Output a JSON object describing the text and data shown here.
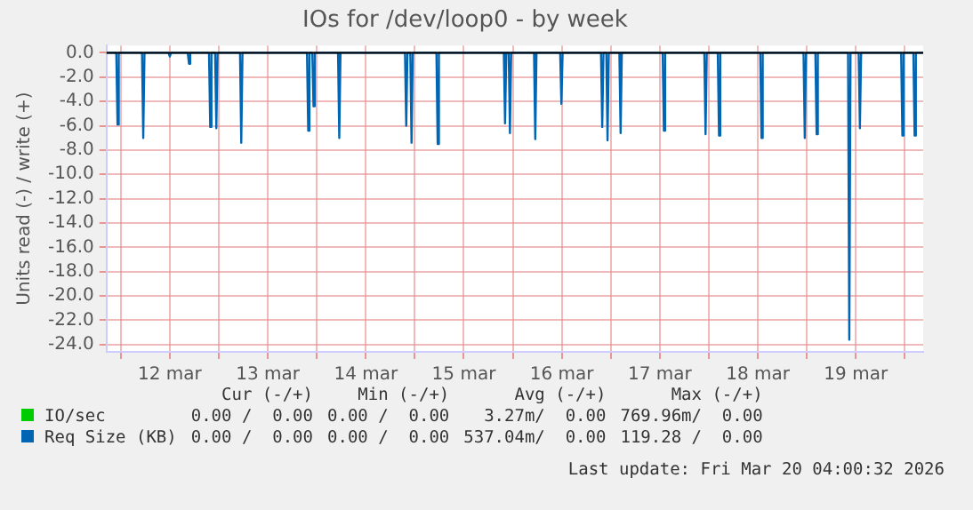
{
  "chart_data": {
    "type": "line",
    "title": "IOs for /dev/loop0 - by week",
    "ylabel": "Units read (-) / write (+)",
    "xlim": [
      "2026-03-11T20:30",
      "2026-03-20T04:30"
    ],
    "xticks": [
      {
        "value": "2026-03-12",
        "label": null
      },
      {
        "value": "2026-03-12T12:00",
        "label": "12 mar"
      },
      {
        "value": "2026-03-13",
        "label": null
      },
      {
        "value": "2026-03-13T12:00",
        "label": "13 mar"
      },
      {
        "value": "2026-03-14",
        "label": null
      },
      {
        "value": "2026-03-14T12:00",
        "label": "14 mar"
      },
      {
        "value": "2026-03-15",
        "label": null
      },
      {
        "value": "2026-03-15T12:00",
        "label": "15 mar"
      },
      {
        "value": "2026-03-16",
        "label": null
      },
      {
        "value": "2026-03-16T12:00",
        "label": "16 mar"
      },
      {
        "value": "2026-03-17",
        "label": null
      },
      {
        "value": "2026-03-17T12:00",
        "label": "17 mar"
      },
      {
        "value": "2026-03-18",
        "label": null
      },
      {
        "value": "2026-03-18T12:00",
        "label": "18 mar"
      },
      {
        "value": "2026-03-19",
        "label": null
      },
      {
        "value": "2026-03-19T12:00",
        "label": "19 mar"
      },
      {
        "value": "2026-03-20",
        "label": null
      }
    ],
    "ylim": [
      -24.6,
      0.6
    ],
    "yticks": [
      {
        "value": 0,
        "label": "0.0"
      },
      {
        "value": -2,
        "label": "-2.0"
      },
      {
        "value": -4,
        "label": "-4.0"
      },
      {
        "value": -6,
        "label": "-6.0"
      },
      {
        "value": -8,
        "label": "-8.0"
      },
      {
        "value": -10,
        "label": "-10.0"
      },
      {
        "value": -12,
        "label": "-12.0"
      },
      {
        "value": -14,
        "label": "-14.0"
      },
      {
        "value": -16,
        "label": "-16.0"
      },
      {
        "value": -18,
        "label": "-18.0"
      },
      {
        "value": -20,
        "label": "-20.0"
      },
      {
        "value": -22,
        "label": "-22.0"
      },
      {
        "value": -24,
        "label": "-24.0"
      }
    ],
    "grid": true,
    "legend": "bottom",
    "marker": "none",
    "ref_lines": [
      {
        "axis": "y",
        "value": 0,
        "color": "#000000"
      }
    ],
    "series": [
      {
        "name": "IO/sec",
        "color": "#00cc00"
      },
      {
        "name": "Req Size (KB)",
        "color": "#0066b3",
        "x": [
          "2026-03-11T20:30",
          "2026-03-11T22:54",
          "2026-03-11T23:12",
          "2026-03-11T23:30",
          "2026-03-12T05:12",
          "2026-03-12T05:30",
          "2026-03-12T05:48",
          "2026-03-12T11:42",
          "2026-03-12T12:00",
          "2026-03-12T12:18",
          "2026-03-12T16:24",
          "2026-03-12T16:42",
          "2026-03-12T17:00",
          "2026-03-12T21:36",
          "2026-03-12T21:54",
          "2026-03-12T22:12",
          "2026-03-12T23:06",
          "2026-03-12T23:24",
          "2026-03-12T23:42",
          "2026-03-13T05:12",
          "2026-03-13T05:30",
          "2026-03-13T05:48",
          "2026-03-13T21:36",
          "2026-03-13T21:54",
          "2026-03-13T22:12",
          "2026-03-13T22:54",
          "2026-03-13T23:12",
          "2026-03-13T23:30",
          "2026-03-14T05:12",
          "2026-03-14T05:30",
          "2026-03-14T05:48",
          "2026-03-14T21:36",
          "2026-03-14T21:54",
          "2026-03-14T22:12",
          "2026-03-14T22:54",
          "2026-03-14T23:12",
          "2026-03-14T23:30",
          "2026-03-15T05:18",
          "2026-03-15T05:36",
          "2026-03-15T05:54",
          "2026-03-15T21:48",
          "2026-03-15T22:06",
          "2026-03-15T22:24",
          "2026-03-15T23:00",
          "2026-03-15T23:18",
          "2026-03-15T23:36",
          "2026-03-16T05:12",
          "2026-03-16T05:30",
          "2026-03-16T05:48",
          "2026-03-16T11:36",
          "2026-03-16T11:54",
          "2026-03-16T12:12",
          "2026-03-16T21:36",
          "2026-03-16T21:54",
          "2026-03-16T22:12",
          "2026-03-16T22:54",
          "2026-03-16T23:12",
          "2026-03-16T23:30",
          "2026-03-17T02:06",
          "2026-03-17T02:24",
          "2026-03-17T02:42",
          "2026-03-17T12:42",
          "2026-03-17T13:00",
          "2026-03-17T13:18",
          "2026-03-17T22:54",
          "2026-03-17T23:12",
          "2026-03-17T23:30",
          "2026-03-18T02:12",
          "2026-03-18T02:30",
          "2026-03-18T02:48",
          "2026-03-18T12:36",
          "2026-03-18T12:54",
          "2026-03-18T13:12",
          "2026-03-18T23:12",
          "2026-03-18T23:30",
          "2026-03-18T23:48",
          "2026-03-19T02:06",
          "2026-03-19T02:24",
          "2026-03-19T02:42",
          "2026-03-19T10:06",
          "2026-03-19T10:24",
          "2026-03-19T10:42",
          "2026-03-19T12:42",
          "2026-03-19T13:00",
          "2026-03-19T13:18",
          "2026-03-19T23:06",
          "2026-03-19T23:24",
          "2026-03-19T23:42",
          "2026-03-20T02:06",
          "2026-03-20T02:24",
          "2026-03-20T02:42",
          "2026-03-20T04:30"
        ],
        "values": [
          0,
          0,
          -5.9,
          0,
          0,
          -7.0,
          0,
          0,
          -0.3,
          0,
          0,
          -0.9,
          0,
          0,
          -6.1,
          0,
          0,
          -6.2,
          0,
          0,
          -7.4,
          0,
          0,
          -6.4,
          0,
          0,
          -4.4,
          0,
          0,
          -7.0,
          0,
          0,
          -6.0,
          0,
          0,
          -7.4,
          0,
          0,
          -7.5,
          0,
          0,
          -5.8,
          0,
          0,
          -6.6,
          0,
          0,
          -7.1,
          0,
          0,
          -4.2,
          0,
          0,
          -6.1,
          0,
          0,
          -7.2,
          0,
          0,
          -6.6,
          0,
          0,
          -6.4,
          0,
          0,
          -6.7,
          0,
          0,
          -6.8,
          0,
          0,
          -7.0,
          0,
          0,
          -7.0,
          0,
          0,
          -6.7,
          0,
          0,
          -23.6,
          0,
          0,
          -6.2,
          0,
          0,
          -6.8,
          0,
          0,
          -6.8,
          0,
          0
        ]
      }
    ],
    "annotations": [
      "Cur (-/+)",
      "Min (-/+)",
      "Avg (-/+)",
      "Max (-/+)",
      "0.00 /  0.00",
      "0.00 /  0.00",
      "3.27m/  0.00",
      "769.96m/  0.00",
      "0.00 /  0.00",
      "0.00 /  0.00",
      "537.04m/  0.00",
      "119.28 /  0.00",
      "Last update: Fri Mar 20 04:00:32 2026"
    ]
  }
}
